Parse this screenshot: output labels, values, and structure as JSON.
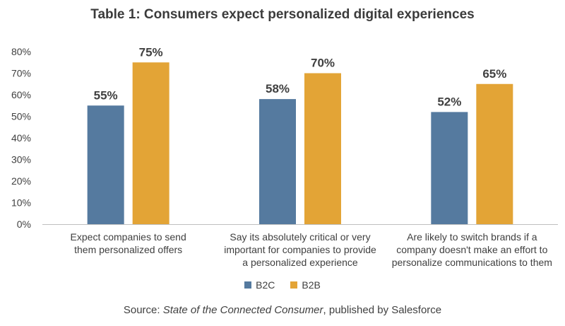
{
  "chart_data": {
    "type": "bar",
    "title": "Table 1: Consumers expect personalized digital experiences",
    "categories": [
      "Expect companies to send them personalized offers",
      "Say its absolutely critical or very important for companies to provide a personalized experience",
      "Are likely to switch brands if a company doesn't make an effort to personalize communications to them"
    ],
    "category_lines": [
      [
        "Expect companies to send",
        "them personalized offers"
      ],
      [
        "Say its absolutely critical or very",
        "important for companies to provide",
        "a personalized experience"
      ],
      [
        "Are likely to switch brands if a",
        "company doesn't make an effort to",
        "personalize communications to them"
      ]
    ],
    "series": [
      {
        "name": "B2C",
        "values": [
          55,
          58,
          52
        ],
        "color": "#557a9f"
      },
      {
        "name": "B2B",
        "values": [
          75,
          70,
          65
        ],
        "color": "#e3a436"
      }
    ],
    "value_suffix": "%",
    "ylim": [
      0,
      80
    ],
    "yticks": [
      "0%",
      "10%",
      "20%",
      "30%",
      "40%",
      "50%",
      "60%",
      "70%",
      "80%"
    ],
    "ytick_values": [
      0,
      10,
      20,
      30,
      40,
      50,
      60,
      70,
      80
    ],
    "grid": false,
    "legend_position": "bottom-center"
  },
  "source": {
    "prefix": "Source: ",
    "italic": "State of the Connected Consumer",
    "suffix": ", published by Salesforce"
  }
}
